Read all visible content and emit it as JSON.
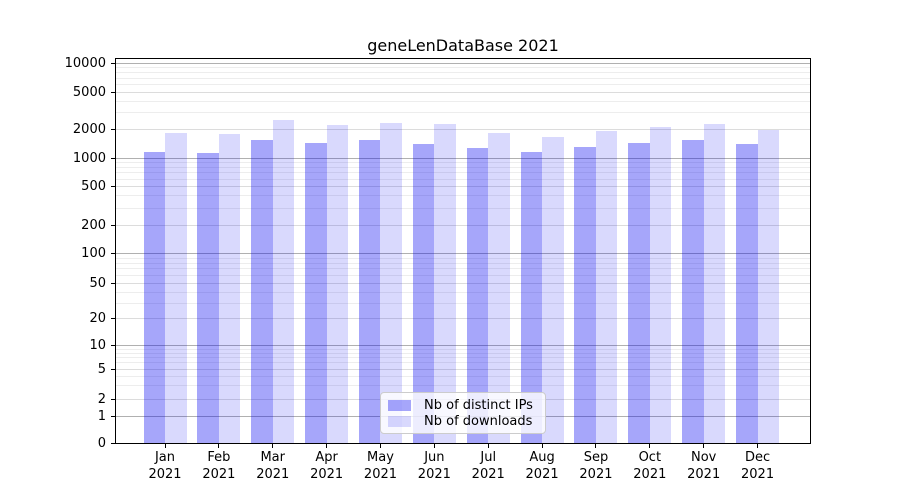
{
  "chart_data": {
    "type": "bar",
    "title": "geneLenDataBase 2021",
    "categories": [
      "Jan",
      "Feb",
      "Mar",
      "Apr",
      "May",
      "Jun",
      "Jul",
      "Aug",
      "Sep",
      "Oct",
      "Nov",
      "Dec"
    ],
    "year_label": "2021",
    "series": [
      {
        "name": "Nb of distinct IPs",
        "color": "rgba(0,0,240,0.35)",
        "values": [
          1160,
          1140,
          1530,
          1450,
          1550,
          1400,
          1280,
          1170,
          1310,
          1450,
          1530,
          1410
        ]
      },
      {
        "name": "Nb of downloads",
        "color": "rgba(0,0,240,0.15)",
        "values": [
          1830,
          1790,
          2500,
          2200,
          2350,
          2250,
          1840,
          1670,
          1900,
          2110,
          2290,
          1960
        ]
      }
    ],
    "yscale": "symlog",
    "yticks": [
      0,
      1,
      2,
      5,
      10,
      20,
      50,
      100,
      200,
      500,
      1000,
      2000,
      5000,
      10000
    ],
    "ylim": [
      0,
      11300
    ],
    "xlabel": "",
    "ylabel": "",
    "grid": true,
    "legend_position": "lower center"
  }
}
